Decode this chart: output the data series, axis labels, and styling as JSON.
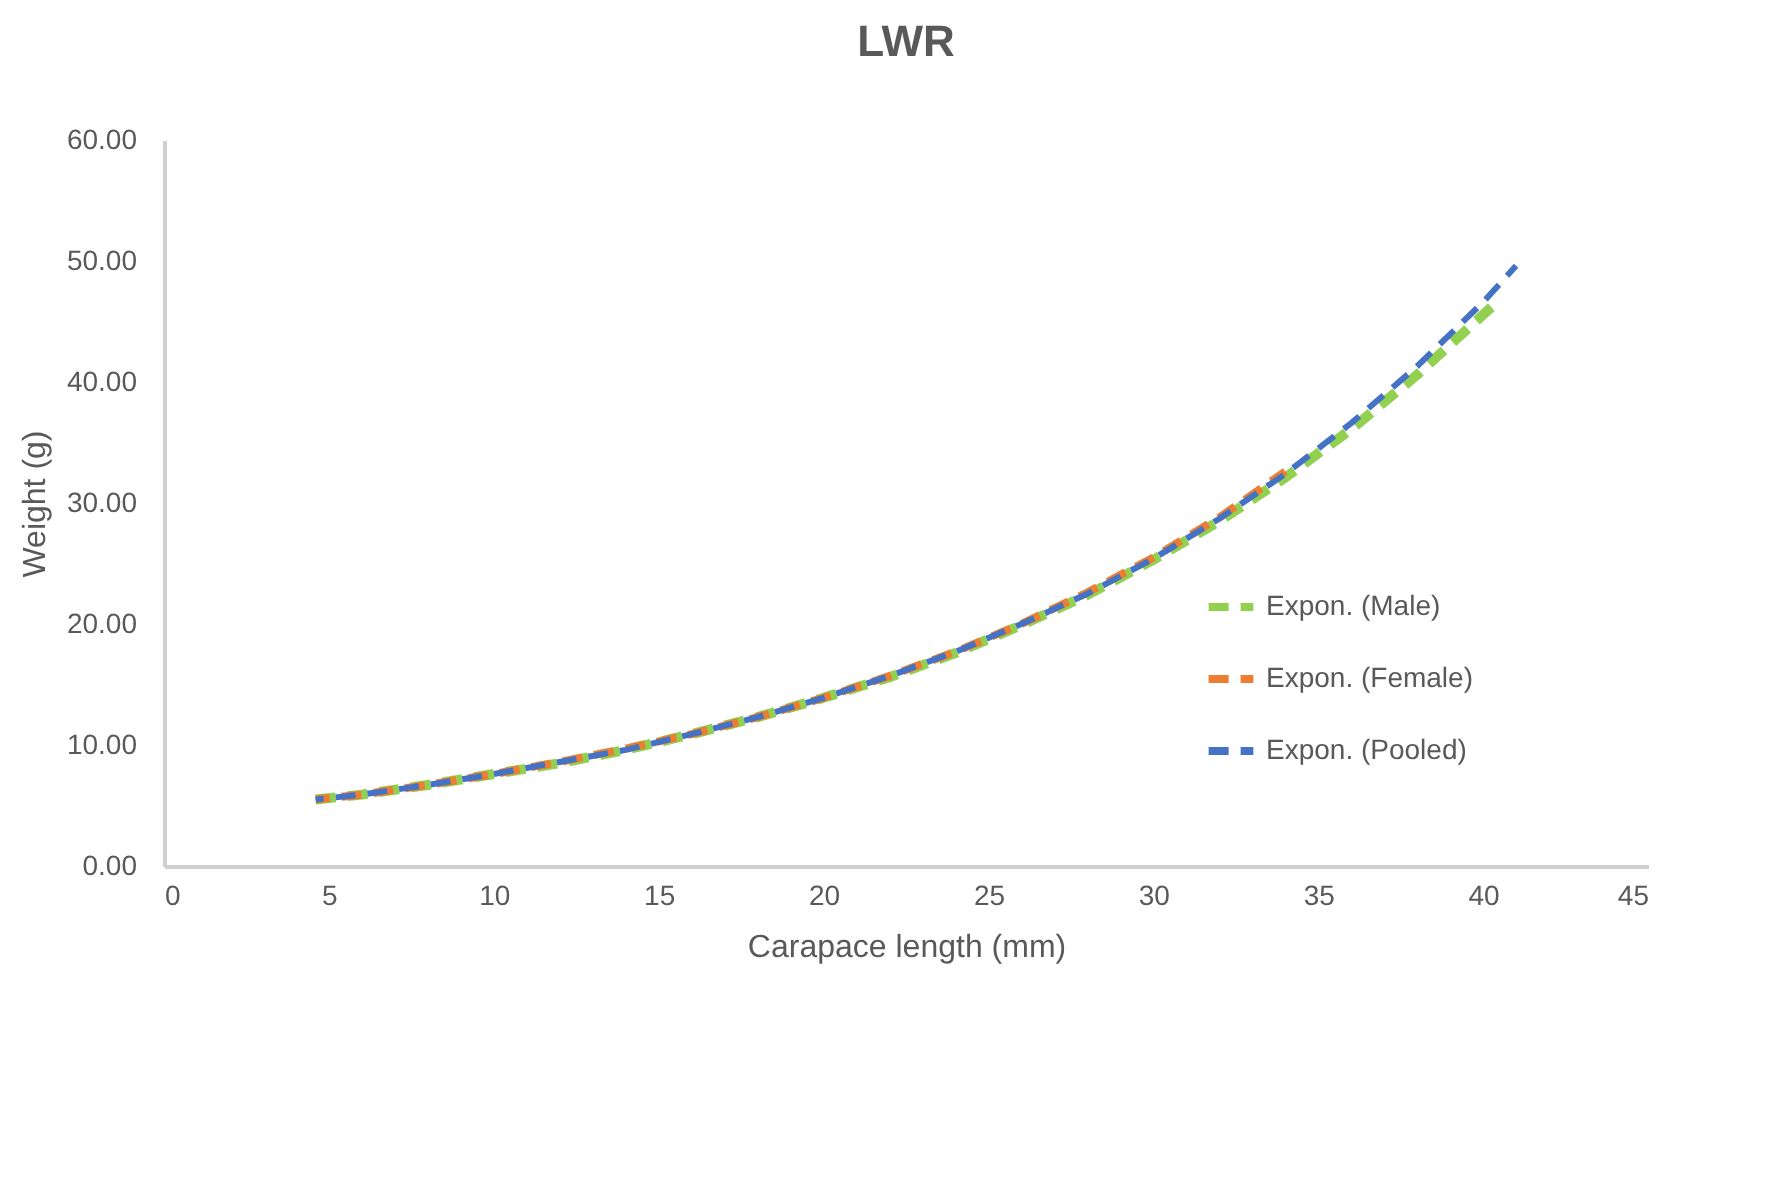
{
  "chart_data": {
    "type": "line",
    "title": "LWR",
    "xlabel": "Carapace length (mm)",
    "ylabel": "Weight (g)",
    "xlim": [
      0,
      45
    ],
    "xticks": [
      0,
      5,
      10,
      15,
      20,
      25,
      30,
      35,
      40,
      45
    ],
    "ylim": [
      0,
      60
    ],
    "yticks": [
      {
        "value": 0,
        "label": "0.00"
      },
      {
        "value": 10,
        "label": "10.00"
      },
      {
        "value": 20,
        "label": "20.00"
      },
      {
        "value": 30,
        "label": "30.00"
      },
      {
        "value": 40,
        "label": "40.00"
      },
      {
        "value": 50,
        "label": "50.00"
      },
      {
        "value": 60,
        "label": "60.00"
      }
    ],
    "grid": false,
    "legend": "right",
    "line_style": "dashed",
    "marker": "none",
    "series": [
      {
        "name": "Expon. (Male)",
        "color": "#92d050",
        "x": [
          4.6,
          6,
          8,
          10,
          12,
          14,
          16,
          18,
          20,
          22,
          24,
          26,
          28,
          30,
          32,
          34,
          36,
          38,
          40.3
        ],
        "values": [
          5.5,
          5.9,
          6.7,
          7.6,
          8.5,
          9.6,
          10.9,
          12.3,
          13.9,
          15.6,
          17.6,
          19.9,
          22.4,
          25.3,
          28.5,
          32.1,
          36.1,
          40.6,
          46.3
        ]
      },
      {
        "name": "Expon. (Female)",
        "color": "#ed7d31",
        "x": [
          4.6,
          6,
          8,
          10,
          12,
          14,
          16,
          18,
          20,
          22,
          24,
          26,
          28,
          30,
          32,
          34
        ],
        "values": [
          5.5,
          5.9,
          6.7,
          7.6,
          8.6,
          9.7,
          10.9,
          12.3,
          13.9,
          15.7,
          17.7,
          20.0,
          22.6,
          25.5,
          28.8,
          32.6
        ]
      },
      {
        "name": "Expon. (Pooled)",
        "color": "#4472c4",
        "x": [
          4.6,
          6,
          8,
          10,
          12,
          14,
          16,
          18,
          20,
          22,
          24,
          26,
          28,
          30,
          32,
          34,
          36,
          38,
          40,
          41
        ],
        "values": [
          5.5,
          5.9,
          6.7,
          7.6,
          8.6,
          9.6,
          10.9,
          12.3,
          13.9,
          15.7,
          17.7,
          20.0,
          22.5,
          25.4,
          28.7,
          32.4,
          36.6,
          41.3,
          46.6,
          49.6
        ]
      }
    ]
  }
}
